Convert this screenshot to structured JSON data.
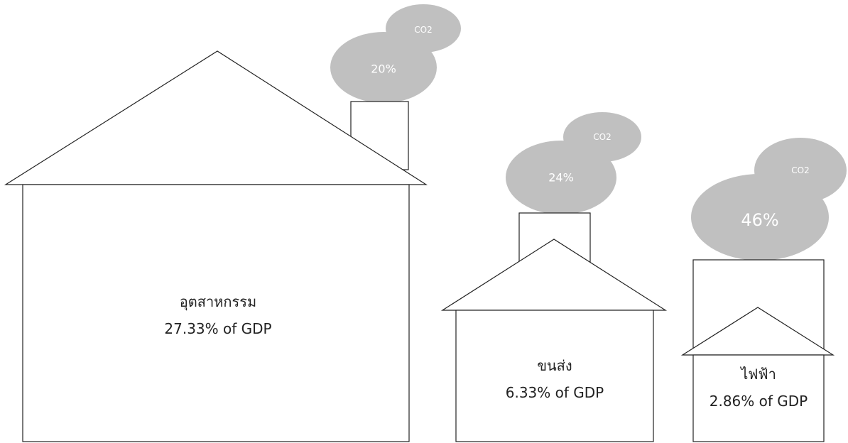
{
  "houses": [
    {
      "name": "อุตสาหกรรม",
      "gdp": "27.33% of GDP",
      "share": "20%",
      "gas": "CO2"
    },
    {
      "name": "ขนส่ง",
      "gdp": "6.33% of GDP",
      "share": "24%",
      "gas": "CO2"
    },
    {
      "name": "ไฟฟ้า",
      "gdp": "2.86% of GDP",
      "share": "46%",
      "gas": "CO2"
    }
  ]
}
